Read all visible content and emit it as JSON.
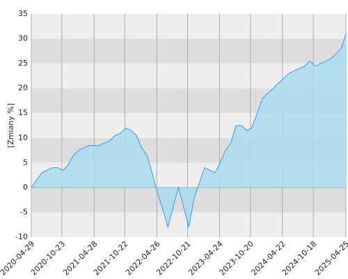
{
  "chart_data": {
    "type": "area",
    "y_label": "[Zmiany %]",
    "x": [
      "2020-04-29",
      "2020-05-29",
      "2020-06-29",
      "2020-07-29",
      "2020-08-28",
      "2020-09-29",
      "2020-10-29",
      "2020-11-27",
      "2020-12-29",
      "2021-01-29",
      "2021-02-26",
      "2021-03-29",
      "2021-04-29",
      "2021-05-28",
      "2021-06-29",
      "2021-07-29",
      "2021-08-27",
      "2021-09-29",
      "2021-10-29",
      "2021-11-29",
      "2021-12-29",
      "2022-01-28",
      "2022-02-28",
      "2022-03-29",
      "2022-04-29",
      "2022-05-27",
      "2022-06-29",
      "2022-07-29",
      "2022-08-29",
      "2022-09-29",
      "2022-10-28",
      "2022-11-29",
      "2022-12-29",
      "2023-01-27",
      "2023-02-28",
      "2023-03-29",
      "2023-04-28",
      "2023-05-29",
      "2023-06-29",
      "2023-07-28",
      "2023-08-29",
      "2023-09-29",
      "2023-10-27",
      "2023-11-29",
      "2023-12-29",
      "2024-01-29",
      "2024-02-29",
      "2024-03-28",
      "2024-04-29",
      "2024-05-29",
      "2024-06-28",
      "2024-07-29",
      "2024-08-29",
      "2024-09-27",
      "2024-10-29",
      "2024-11-29",
      "2024-12-30",
      "2025-01-29",
      "2025-02-28",
      "2025-03-28",
      "2025-04-25"
    ],
    "series": [
      {
        "name": "Zmiany",
        "color": "#3399ee",
        "fill": "#aadcee",
        "values": [
          0,
          1.5,
          3,
          3.5,
          4,
          4,
          3.5,
          4.5,
          6.5,
          7.5,
          8,
          8.5,
          8.5,
          8.5,
          9,
          9.5,
          10.5,
          11,
          12,
          11.5,
          10.5,
          8,
          6.5,
          3,
          -1,
          -4,
          -8,
          -4,
          0,
          -4,
          -8,
          -2,
          1,
          4,
          3.5,
          3,
          5,
          7.5,
          9,
          12.5,
          12.5,
          11.5,
          12,
          15,
          18,
          19,
          20,
          21,
          22,
          23,
          23.5,
          24,
          24.5,
          25.5,
          24.5,
          25,
          25.5,
          26,
          27,
          28,
          31
        ]
      }
    ],
    "xlim": [
      "2020-04-29",
      "2025-04-25"
    ],
    "xticks": [
      "2020-04-29",
      "2020-10-23",
      "2021-04-28",
      "2021-10-22",
      "2022-04-26",
      "2022-10-21",
      "2023-04-24",
      "2023-10-20",
      "2024-04-22",
      "2024-10-18",
      "2025-04-25"
    ],
    "ylim": [
      -10,
      35
    ],
    "yticks": [
      -10,
      -5,
      0,
      5,
      10,
      15,
      20,
      25,
      30,
      35
    ],
    "band_colors": [
      "#eeeeee",
      "#dddddd"
    ],
    "zero_line_color": "#66cccc",
    "grid": true
  }
}
